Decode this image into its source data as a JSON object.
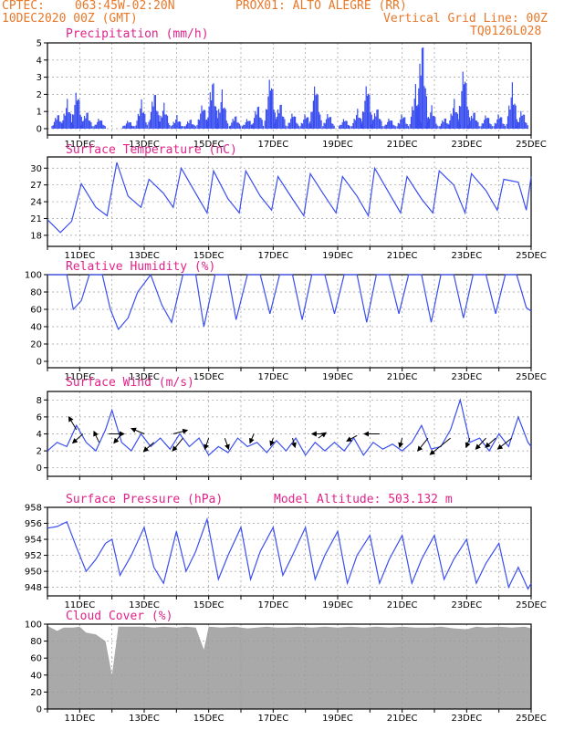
{
  "header": {
    "source": "CPTEC:",
    "coords": "063:45W-02:20N",
    "point": "PROX01: ALTO ALEGRE (RR)",
    "date": "10DEC2020 00Z (GMT)",
    "grid_note": "Vertical Grid Line: 00Z",
    "model": "TQ0126L028"
  },
  "x_ticks": [
    "11DEC",
    "13DEC",
    "15DEC",
    "17DEC",
    "19DEC",
    "21DEC",
    "23DEC",
    "25DEC"
  ],
  "colors": {
    "line": "#3a4ef0",
    "title": "#e0238a",
    "header": "#e8782a",
    "cloud": "#a9a9a9",
    "grid": "#9a9a9a"
  },
  "chart_data": [
    {
      "type": "bar",
      "title": "Precipitation (mm/h)",
      "ylim": [
        0,
        5
      ],
      "yticks": [
        0,
        1,
        2,
        3,
        4,
        5
      ],
      "x_range_days": [
        10,
        25
      ],
      "events": [
        [
          10.3,
          0.8
        ],
        [
          10.6,
          1.5
        ],
        [
          10.9,
          2.2
        ],
        [
          11.2,
          1.0
        ],
        [
          11.6,
          0.6
        ],
        [
          12.5,
          0.5
        ],
        [
          12.9,
          1.5
        ],
        [
          13.3,
          2.0
        ],
        [
          13.6,
          1.3
        ],
        [
          14.0,
          0.8
        ],
        [
          14.4,
          0.6
        ],
        [
          14.8,
          1.5
        ],
        [
          15.1,
          3.0
        ],
        [
          15.4,
          2.2
        ],
        [
          15.8,
          0.8
        ],
        [
          16.2,
          0.6
        ],
        [
          16.5,
          1.4
        ],
        [
          16.9,
          3.0
        ],
        [
          17.2,
          1.5
        ],
        [
          17.6,
          0.9
        ],
        [
          18.0,
          1.0
        ],
        [
          18.3,
          2.5
        ],
        [
          18.7,
          1.0
        ],
        [
          19.2,
          0.6
        ],
        [
          19.6,
          1.0
        ],
        [
          19.9,
          2.6
        ],
        [
          20.2,
          1.2
        ],
        [
          20.6,
          0.6
        ],
        [
          21.0,
          1.0
        ],
        [
          21.4,
          2.5
        ],
        [
          21.6,
          4.9
        ],
        [
          21.9,
          1.2
        ],
        [
          22.3,
          0.6
        ],
        [
          22.6,
          1.5
        ],
        [
          22.9,
          3.5
        ],
        [
          23.2,
          1.0
        ],
        [
          23.6,
          0.8
        ],
        [
          24.0,
          1.0
        ],
        [
          24.4,
          2.6
        ],
        [
          24.7,
          1.2
        ]
      ]
    },
    {
      "type": "line",
      "title": "Surface Temperature (nC)",
      "ylim": [
        17,
        32
      ],
      "yticks": [
        18,
        21,
        24,
        27,
        30
      ],
      "points": [
        [
          10.0,
          20.8
        ],
        [
          10.4,
          18.5
        ],
        [
          10.75,
          20.5
        ],
        [
          11.05,
          27.2
        ],
        [
          11.5,
          23.0
        ],
        [
          11.85,
          21.5
        ],
        [
          12.15,
          31.0
        ],
        [
          12.5,
          25.0
        ],
        [
          12.9,
          23.0
        ],
        [
          13.15,
          28.0
        ],
        [
          13.6,
          25.5
        ],
        [
          13.9,
          23.0
        ],
        [
          14.15,
          30.0
        ],
        [
          14.6,
          25.5
        ],
        [
          14.95,
          22.0
        ],
        [
          15.15,
          29.5
        ],
        [
          15.6,
          24.5
        ],
        [
          15.95,
          22.0
        ],
        [
          16.15,
          29.5
        ],
        [
          16.6,
          25.0
        ],
        [
          16.95,
          22.5
        ],
        [
          17.15,
          28.5
        ],
        [
          17.6,
          24.5
        ],
        [
          17.95,
          21.5
        ],
        [
          18.15,
          29.0
        ],
        [
          18.6,
          25.0
        ],
        [
          18.95,
          22.0
        ],
        [
          19.15,
          28.5
        ],
        [
          19.6,
          25.0
        ],
        [
          19.95,
          21.5
        ],
        [
          20.15,
          30.0
        ],
        [
          20.6,
          25.5
        ],
        [
          20.95,
          22.0
        ],
        [
          21.15,
          28.5
        ],
        [
          21.6,
          24.5
        ],
        [
          21.95,
          22.0
        ],
        [
          22.15,
          29.5
        ],
        [
          22.6,
          27.0
        ],
        [
          22.95,
          22.0
        ],
        [
          23.15,
          29.0
        ],
        [
          23.6,
          26.0
        ],
        [
          23.95,
          22.5
        ],
        [
          24.15,
          28.0
        ],
        [
          24.6,
          27.5
        ],
        [
          24.85,
          22.5
        ],
        [
          25.0,
          28.5
        ]
      ]
    },
    {
      "type": "line",
      "title": "Relative Humidity (%)",
      "ylim": [
        0,
        100
      ],
      "yticks": [
        0,
        20,
        40,
        60,
        80,
        100
      ],
      "points": [
        [
          10.0,
          100
        ],
        [
          10.6,
          100
        ],
        [
          10.8,
          60
        ],
        [
          11.05,
          70
        ],
        [
          11.3,
          100
        ],
        [
          11.7,
          100
        ],
        [
          11.95,
          60
        ],
        [
          12.2,
          37
        ],
        [
          12.5,
          50
        ],
        [
          12.8,
          80
        ],
        [
          13.2,
          100
        ],
        [
          13.55,
          65
        ],
        [
          13.85,
          45
        ],
        [
          14.2,
          100
        ],
        [
          14.6,
          100
        ],
        [
          14.85,
          40
        ],
        [
          15.2,
          100
        ],
        [
          15.6,
          100
        ],
        [
          15.85,
          48
        ],
        [
          16.2,
          100
        ],
        [
          16.6,
          100
        ],
        [
          16.9,
          55
        ],
        [
          17.2,
          100
        ],
        [
          17.6,
          100
        ],
        [
          17.9,
          48
        ],
        [
          18.2,
          100
        ],
        [
          18.6,
          100
        ],
        [
          18.9,
          55
        ],
        [
          19.2,
          100
        ],
        [
          19.6,
          100
        ],
        [
          19.9,
          45
        ],
        [
          20.2,
          100
        ],
        [
          20.6,
          100
        ],
        [
          20.9,
          55
        ],
        [
          21.2,
          100
        ],
        [
          21.6,
          100
        ],
        [
          21.9,
          45
        ],
        [
          22.2,
          100
        ],
        [
          22.6,
          100
        ],
        [
          22.9,
          50
        ],
        [
          23.2,
          100
        ],
        [
          23.6,
          100
        ],
        [
          23.9,
          55
        ],
        [
          24.2,
          100
        ],
        [
          24.55,
          100
        ],
        [
          24.85,
          62
        ],
        [
          25.0,
          58
        ]
      ]
    },
    {
      "type": "line",
      "title": "Surface Wind (m/s)",
      "ylim": [
        -1,
        9
      ],
      "yticks": [
        0,
        2,
        4,
        6,
        8
      ],
      "points": [
        [
          10.0,
          2.0
        ],
        [
          10.3,
          3.0
        ],
        [
          10.6,
          2.5
        ],
        [
          10.9,
          5.0
        ],
        [
          11.2,
          3.0
        ],
        [
          11.5,
          2.0
        ],
        [
          11.8,
          4.5
        ],
        [
          12.0,
          6.8
        ],
        [
          12.3,
          3.0
        ],
        [
          12.6,
          2.0
        ],
        [
          12.9,
          4.0
        ],
        [
          13.2,
          2.5
        ],
        [
          13.5,
          3.5
        ],
        [
          13.8,
          2.2
        ],
        [
          14.1,
          4.0
        ],
        [
          14.4,
          2.5
        ],
        [
          14.7,
          3.5
        ],
        [
          15.0,
          1.5
        ],
        [
          15.3,
          2.5
        ],
        [
          15.6,
          1.8
        ],
        [
          15.9,
          3.5
        ],
        [
          16.2,
          2.5
        ],
        [
          16.5,
          3.0
        ],
        [
          16.8,
          1.8
        ],
        [
          17.1,
          3.2
        ],
        [
          17.4,
          2.0
        ],
        [
          17.7,
          3.5
        ],
        [
          18.0,
          1.5
        ],
        [
          18.3,
          3.0
        ],
        [
          18.6,
          2.0
        ],
        [
          18.9,
          3.0
        ],
        [
          19.2,
          2.0
        ],
        [
          19.5,
          3.5
        ],
        [
          19.8,
          1.5
        ],
        [
          20.1,
          3.0
        ],
        [
          20.4,
          2.2
        ],
        [
          20.7,
          2.8
        ],
        [
          21.0,
          2.0
        ],
        [
          21.3,
          3.0
        ],
        [
          21.6,
          5.0
        ],
        [
          21.9,
          2.2
        ],
        [
          22.2,
          2.5
        ],
        [
          22.5,
          4.5
        ],
        [
          22.8,
          8.0
        ],
        [
          23.1,
          3.0
        ],
        [
          23.4,
          3.5
        ],
        [
          23.7,
          2.0
        ],
        [
          24.0,
          4.0
        ],
        [
          24.3,
          2.5
        ],
        [
          24.6,
          6.0
        ],
        [
          24.9,
          3.0
        ],
        [
          25.0,
          2.5
        ]
      ],
      "vectors": [
        [
          10.9,
          4.5,
          -0.6,
          1.4
        ],
        [
          11.1,
          4.0,
          -0.8,
          -1.0
        ],
        [
          11.6,
          3.0,
          -0.4,
          1.2
        ],
        [
          11.9,
          4.0,
          1.2,
          0.0
        ],
        [
          12.3,
          4.0,
          -0.6,
          -1.0
        ],
        [
          13.0,
          4.0,
          -1.0,
          0.6
        ],
        [
          13.3,
          3.0,
          -0.8,
          -1.0
        ],
        [
          13.9,
          4.0,
          1.1,
          0.4
        ],
        [
          14.2,
          3.5,
          -0.8,
          -1.4
        ],
        [
          15.0,
          3.5,
          -0.3,
          -1.2
        ],
        [
          15.5,
          3.5,
          0.3,
          -1.2
        ],
        [
          16.4,
          4.0,
          -0.3,
          -1.0
        ],
        [
          17.0,
          3.5,
          -0.2,
          -0.8
        ],
        [
          17.6,
          3.5,
          0.2,
          -1.0
        ],
        [
          18.4,
          3.5,
          0.6,
          0.6
        ],
        [
          18.6,
          4.0,
          -1.0,
          0.0
        ],
        [
          19.6,
          3.8,
          -0.8,
          -0.6
        ],
        [
          20.3,
          4.0,
          -1.2,
          0.0
        ],
        [
          21.0,
          3.5,
          -0.2,
          -1.0
        ],
        [
          21.8,
          3.5,
          -0.8,
          -1.4
        ],
        [
          22.5,
          3.5,
          -1.6,
          -1.8
        ],
        [
          23.1,
          3.5,
          -0.3,
          -1.0
        ],
        [
          23.6,
          3.5,
          -0.8,
          -1.2
        ],
        [
          23.9,
          3.5,
          -0.8,
          -1.0
        ],
        [
          24.4,
          3.5,
          -1.1,
          -1.2
        ]
      ]
    },
    {
      "type": "line",
      "title": "Surface Pressure (hPa)",
      "annotation": "Model Altitude: 503.132  m",
      "ylim": [
        947.5,
        958
      ],
      "yticks": [
        948,
        950,
        952,
        954,
        956,
        958
      ],
      "points": [
        [
          10.0,
          955.4
        ],
        [
          10.3,
          955.6
        ],
        [
          10.6,
          956.2
        ],
        [
          10.9,
          953.0
        ],
        [
          11.2,
          950.0
        ],
        [
          11.5,
          951.5
        ],
        [
          11.8,
          953.5
        ],
        [
          12.0,
          954.0
        ],
        [
          12.25,
          949.5
        ],
        [
          12.6,
          952.0
        ],
        [
          13.0,
          955.5
        ],
        [
          13.3,
          950.5
        ],
        [
          13.6,
          948.5
        ],
        [
          14.0,
          955.0
        ],
        [
          14.3,
          950.0
        ],
        [
          14.6,
          952.5
        ],
        [
          14.95,
          956.5
        ],
        [
          15.3,
          949.0
        ],
        [
          15.6,
          952.0
        ],
        [
          16.0,
          955.5
        ],
        [
          16.3,
          949.0
        ],
        [
          16.6,
          952.5
        ],
        [
          17.0,
          955.5
        ],
        [
          17.3,
          949.5
        ],
        [
          17.6,
          952.0
        ],
        [
          18.0,
          955.5
        ],
        [
          18.3,
          949.0
        ],
        [
          18.6,
          952.0
        ],
        [
          19.0,
          955.0
        ],
        [
          19.3,
          948.5
        ],
        [
          19.6,
          952.0
        ],
        [
          20.0,
          954.5
        ],
        [
          20.3,
          948.5
        ],
        [
          20.6,
          951.5
        ],
        [
          21.0,
          954.5
        ],
        [
          21.3,
          948.5
        ],
        [
          21.6,
          951.5
        ],
        [
          22.0,
          954.5
        ],
        [
          22.3,
          949.0
        ],
        [
          22.6,
          951.5
        ],
        [
          23.0,
          954.0
        ],
        [
          23.3,
          948.5
        ],
        [
          23.6,
          951.0
        ],
        [
          24.0,
          953.5
        ],
        [
          24.3,
          948.0
        ],
        [
          24.6,
          950.5
        ],
        [
          24.9,
          947.8
        ],
        [
          25.0,
          948.5
        ]
      ]
    },
    {
      "type": "area",
      "title": "Cloud Cover (%)",
      "ylim": [
        0,
        100
      ],
      "yticks": [
        0,
        20,
        40,
        60,
        80,
        100
      ],
      "points": [
        [
          10.0,
          98
        ],
        [
          10.3,
          92
        ],
        [
          10.5,
          96
        ],
        [
          10.8,
          96
        ],
        [
          11.0,
          97
        ],
        [
          11.2,
          90
        ],
        [
          11.5,
          88
        ],
        [
          11.8,
          80
        ],
        [
          12.0,
          40
        ],
        [
          12.2,
          97
        ],
        [
          12.6,
          97
        ],
        [
          13.0,
          97
        ],
        [
          13.3,
          96
        ],
        [
          13.6,
          97
        ],
        [
          14.0,
          96
        ],
        [
          14.3,
          97
        ],
        [
          14.6,
          96
        ],
        [
          14.85,
          70
        ],
        [
          15.0,
          97
        ],
        [
          15.4,
          96
        ],
        [
          15.8,
          97
        ],
        [
          16.2,
          95
        ],
        [
          16.5,
          96
        ],
        [
          16.8,
          97
        ],
        [
          17.1,
          96
        ],
        [
          17.4,
          96
        ],
        [
          17.8,
          97
        ],
        [
          18.2,
          96
        ],
        [
          18.6,
          97
        ],
        [
          19.0,
          96
        ],
        [
          19.4,
          97
        ],
        [
          19.8,
          96
        ],
        [
          20.2,
          97
        ],
        [
          20.6,
          96
        ],
        [
          21.0,
          97
        ],
        [
          21.4,
          96
        ],
        [
          21.8,
          96
        ],
        [
          22.2,
          97
        ],
        [
          22.6,
          95
        ],
        [
          23.0,
          94
        ],
        [
          23.3,
          97
        ],
        [
          23.6,
          96
        ],
        [
          24.0,
          97
        ],
        [
          24.4,
          96
        ],
        [
          24.8,
          97
        ],
        [
          25.0,
          95
        ]
      ]
    }
  ]
}
